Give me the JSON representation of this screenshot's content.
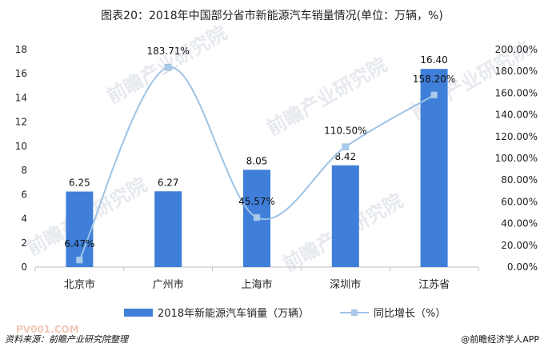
{
  "chart_data": {
    "type": "bar",
    "title": "图表20：2018年中国部分省市新能源汽车销量情况(单位：万辆，%)",
    "categories": [
      "北京市",
      "广州市",
      "上海市",
      "深圳市",
      "江苏省"
    ],
    "series": [
      {
        "name": "2018年新能源汽车销量（万辆）",
        "type": "bar",
        "axis": "left",
        "values": [
          6.25,
          6.27,
          8.05,
          8.42,
          16.4
        ],
        "labels": [
          "6.25",
          "6.27",
          "8.05",
          "8.42",
          "16.40"
        ],
        "color": "#3f7fd9"
      },
      {
        "name": "同比增长（%）",
        "type": "line",
        "axis": "right",
        "values": [
          6.47,
          183.71,
          45.57,
          110.5,
          158.2
        ],
        "labels": [
          "6.47%",
          "183.71%",
          "45.57%",
          "110.50%",
          "158.20%"
        ],
        "color": "#9dc3e6",
        "marker_color": "#a9caea"
      }
    ],
    "y_left": {
      "min": 0,
      "max": 18,
      "ticks": [
        "0",
        "2",
        "4",
        "6",
        "8",
        "10",
        "12",
        "14",
        "16",
        "18"
      ]
    },
    "y_right": {
      "min": 0,
      "max": 200,
      "ticks": [
        "0.00%",
        "20.00%",
        "40.00%",
        "60.00%",
        "80.00%",
        "100.00%",
        "120.00%",
        "140.00%",
        "160.00%",
        "180.00%",
        "200.00%"
      ]
    },
    "grid": false,
    "legend": "bottom"
  },
  "footer": {
    "source": "资料来源：前瞻产业研究院整理",
    "brand": "@前瞻经济学人APP"
  },
  "watermark": {
    "text": "前瞻产业研究院",
    "site": "PV001.COM"
  }
}
